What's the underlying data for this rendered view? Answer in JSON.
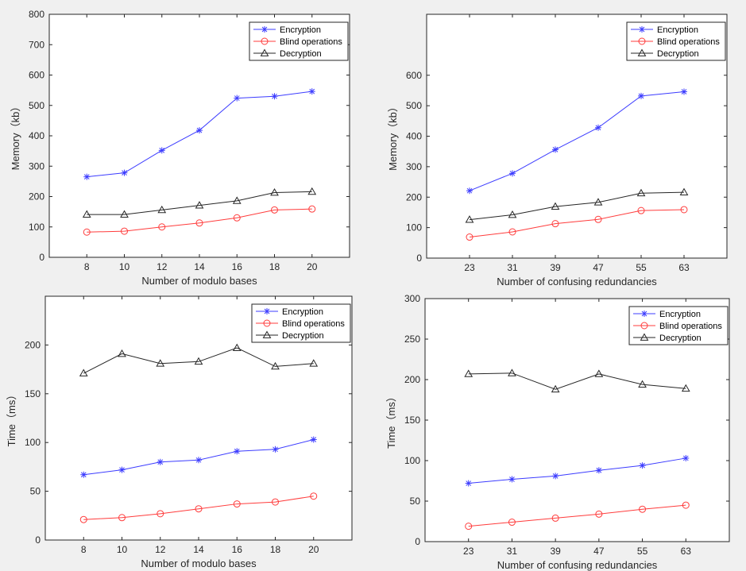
{
  "colors": {
    "background": "#f0f0f0",
    "axes_bg": "#ffffff",
    "axis": "#262626",
    "encryption": "#3c3cff",
    "blind": "#ff3c3c",
    "decryption": "#262626"
  },
  "chart_data": [
    {
      "type": "line",
      "title": "",
      "xlabel": "Number of modulo bases",
      "ylabel": "Memory（kb）",
      "categories": [
        "8",
        "10",
        "12",
        "14",
        "16",
        "18",
        "20"
      ],
      "xlim": [
        6,
        22
      ],
      "x": [
        8,
        10,
        12,
        14,
        16,
        18,
        20
      ],
      "ylim": [
        0,
        800
      ],
      "yticks": [
        "0",
        "100",
        "200",
        "300",
        "400",
        "500",
        "600",
        "700",
        "800"
      ],
      "legend_position": "top-right",
      "series": [
        {
          "name": "Encryption",
          "marker": "star",
          "color": "#3c3cff",
          "values": [
            265,
            278,
            352,
            418,
            524,
            530,
            546
          ]
        },
        {
          "name": "Blind operations",
          "marker": "circle",
          "color": "#ff3c3c",
          "values": [
            83,
            86,
            100,
            113,
            130,
            156,
            159
          ]
        },
        {
          "name": "Decryption",
          "marker": "triangle",
          "color": "#262626",
          "values": [
            141,
            141,
            156,
            171,
            186,
            213,
            216
          ]
        }
      ]
    },
    {
      "type": "line",
      "title": "",
      "xlabel": "Number of confusing redundancies",
      "ylabel": "Memory（kb）",
      "categories": [
        "23",
        "31",
        "39",
        "47",
        "55",
        "63"
      ],
      "xlim": [
        15,
        71
      ],
      "x": [
        23,
        31,
        39,
        47,
        55,
        63
      ],
      "ylim": [
        0,
        800
      ],
      "yticks": [
        "0",
        "100",
        "200",
        "300",
        "400",
        "500",
        "600"
      ],
      "legend_position": "top-right",
      "series": [
        {
          "name": "Encryption",
          "marker": "star",
          "color": "#3c3cff",
          "values": [
            221,
            278,
            356,
            428,
            532,
            546
          ]
        },
        {
          "name": "Blind operations",
          "marker": "circle",
          "color": "#ff3c3c",
          "values": [
            69,
            86,
            113,
            127,
            156,
            159
          ]
        },
        {
          "name": "Decryption",
          "marker": "triangle",
          "color": "#262626",
          "values": [
            126,
            142,
            169,
            183,
            213,
            216
          ]
        }
      ]
    },
    {
      "type": "line",
      "title": "",
      "xlabel": "Number of modulo bases",
      "ylabel": "Time（ms）",
      "categories": [
        "8",
        "10",
        "12",
        "14",
        "16",
        "18",
        "20"
      ],
      "xlim": [
        6,
        22
      ],
      "x": [
        8,
        10,
        12,
        14,
        16,
        18,
        20
      ],
      "ylim": [
        0,
        250
      ],
      "yticks": [
        "0",
        "50",
        "100",
        "150",
        "200"
      ],
      "legend_position": "top-right",
      "series": [
        {
          "name": "Encryption",
          "marker": "star",
          "color": "#3c3cff",
          "values": [
            67,
            72,
            80,
            82,
            91,
            93,
            103
          ]
        },
        {
          "name": "Blind operations",
          "marker": "circle",
          "color": "#ff3c3c",
          "values": [
            21,
            23,
            27,
            32,
            37,
            39,
            45
          ]
        },
        {
          "name": "Decryption",
          "marker": "triangle",
          "color": "#262626",
          "values": [
            171,
            191,
            181,
            183,
            197,
            178,
            181
          ]
        }
      ]
    },
    {
      "type": "line",
      "title": "",
      "xlabel": "Number of confusing redundancies",
      "ylabel": "Time（ms）",
      "categories": [
        "23",
        "31",
        "39",
        "47",
        "55",
        "63"
      ],
      "xlim": [
        15,
        71
      ],
      "x": [
        23,
        31,
        39,
        47,
        55,
        63
      ],
      "ylim": [
        0,
        300
      ],
      "yticks": [
        "0",
        "50",
        "100",
        "150",
        "200",
        "250",
        "300"
      ],
      "legend_position": "top-right",
      "series": [
        {
          "name": "Encryption",
          "marker": "star",
          "color": "#3c3cff",
          "values": [
            72,
            77,
            81,
            88,
            94,
            103
          ]
        },
        {
          "name": "Blind operations",
          "marker": "circle",
          "color": "#ff3c3c",
          "values": [
            19,
            24,
            29,
            34,
            40,
            45
          ]
        },
        {
          "name": "Decryption",
          "marker": "triangle",
          "color": "#262626",
          "values": [
            207,
            208,
            188,
            207,
            194,
            189
          ]
        }
      ]
    }
  ]
}
